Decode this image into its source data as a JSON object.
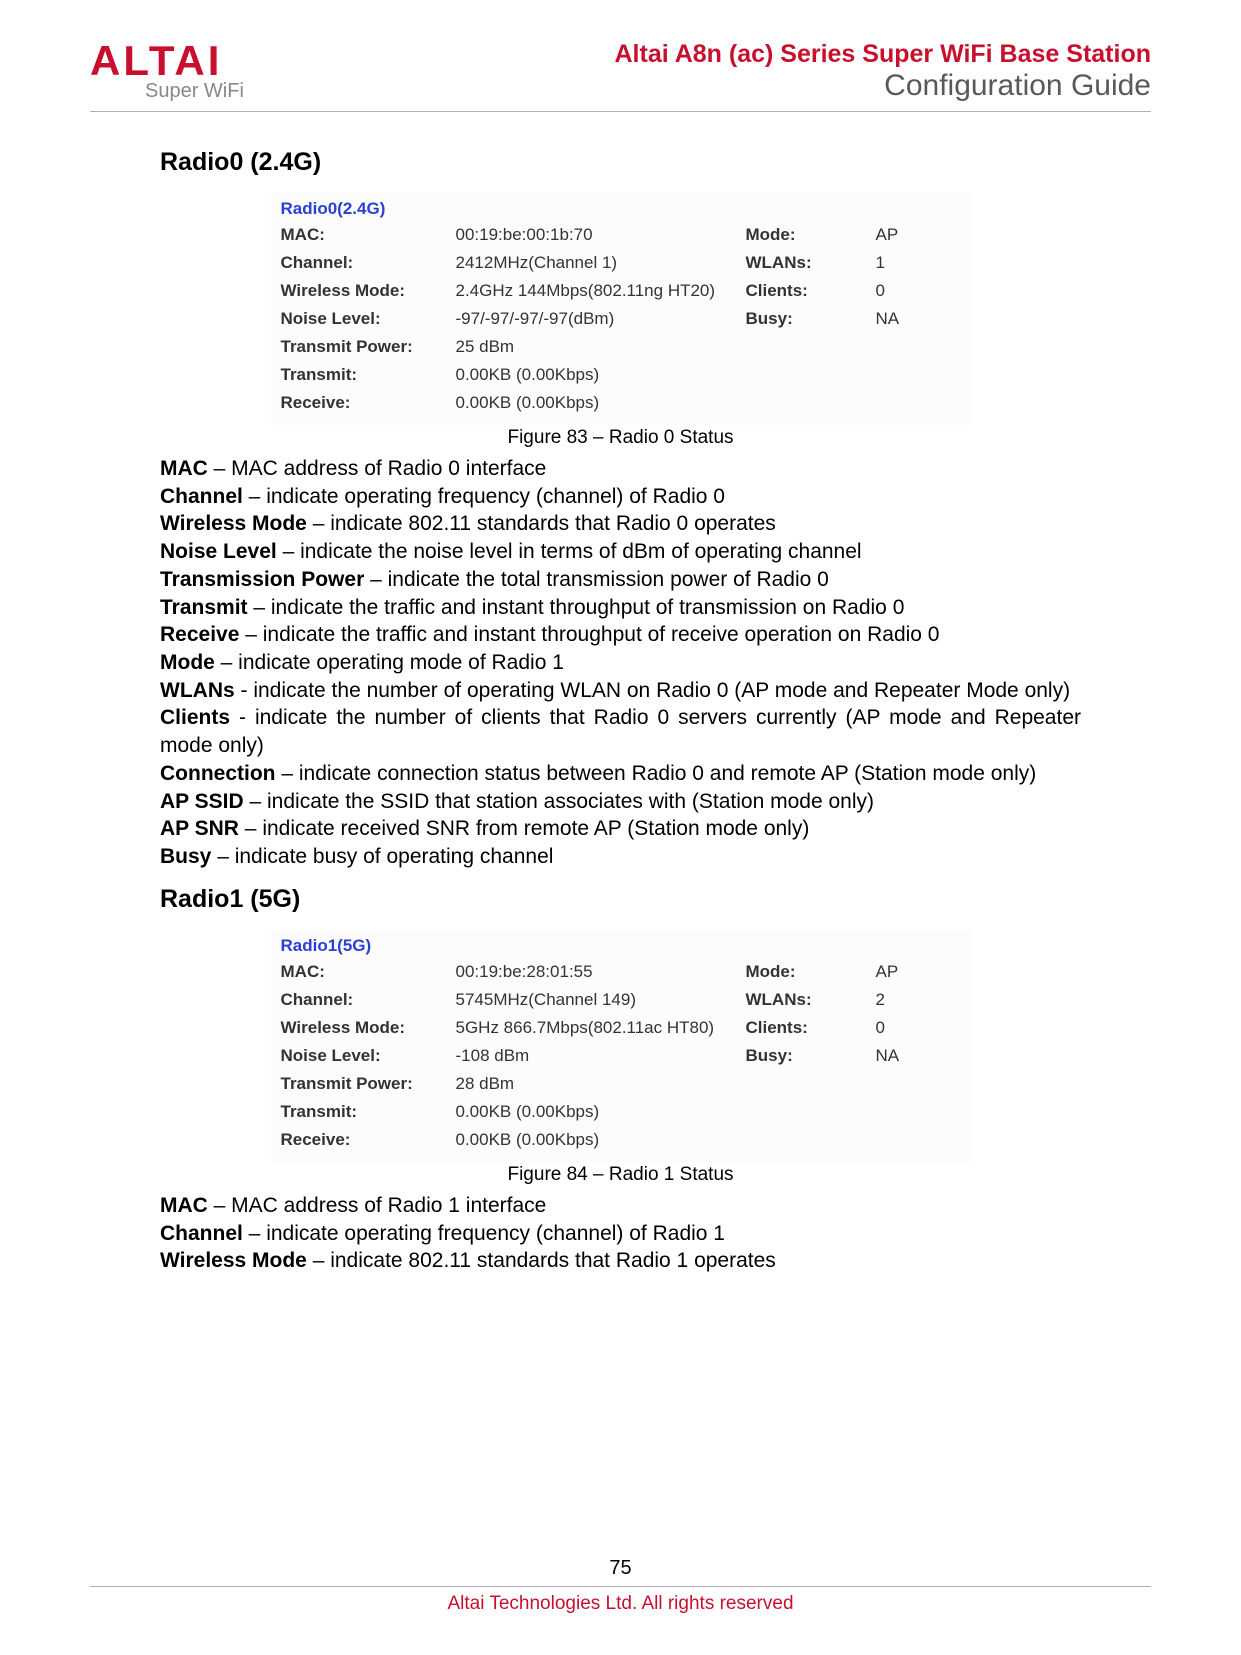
{
  "header": {
    "logo_main": "ALTAI",
    "logo_sub": "Super WiFi",
    "title1": "Altai A8n (ac) Series Super WiFi Base Station",
    "title2": "Configuration Guide"
  },
  "section1": {
    "heading": "Radio0 (2.4G)",
    "table_title": "Radio0(2.4G)",
    "rows": [
      {
        "lbl": "MAC:",
        "val": "00:19:be:00:1b:70",
        "lbl2": "Mode:",
        "val2": "AP"
      },
      {
        "lbl": "Channel:",
        "val": "2412MHz(Channel 1)",
        "lbl2": "WLANs:",
        "val2": "1"
      },
      {
        "lbl": "Wireless Mode:",
        "val": "2.4GHz 144Mbps(802.11ng HT20)",
        "lbl2": "Clients:",
        "val2": "0"
      },
      {
        "lbl": "Noise Level:",
        "val": "-97/-97/-97/-97(dBm)",
        "lbl2": "Busy:",
        "val2": "NA"
      },
      {
        "lbl": "Transmit Power:",
        "val": "25 dBm",
        "lbl2": "",
        "val2": ""
      },
      {
        "lbl": "Transmit:",
        "val": "0.00KB (0.00Kbps)",
        "lbl2": "",
        "val2": ""
      },
      {
        "lbl": "Receive:",
        "val": "0.00KB (0.00Kbps)",
        "lbl2": "",
        "val2": ""
      }
    ],
    "caption": "Figure 83 – Radio 0 Status",
    "defs": [
      {
        "term": "MAC",
        "text": " – MAC address of Radio 0 interface",
        "j": false
      },
      {
        "term": "Channel",
        "text": " – indicate operating frequency (channel) of Radio 0",
        "j": false
      },
      {
        "term": "Wireless Mode",
        "text": " – indicate 802.11 standards that Radio 0 operates",
        "j": false
      },
      {
        "term": "Noise Level",
        "text": " – indicate the noise level in terms of dBm of operating channel",
        "j": false
      },
      {
        "term": "Transmission Power",
        "text": " – indicate the total transmission power of Radio 0",
        "j": false
      },
      {
        "term": "Transmit",
        "text": " – indicate the traffic and instant throughput of transmission on Radio 0",
        "j": false
      },
      {
        "term": "Receive",
        "text": " – indicate the traffic and instant throughput of receive operation on Radio 0",
        "j": true
      },
      {
        "term": "Mode",
        "text": " – indicate operating mode of Radio 1",
        "j": false
      },
      {
        "term": "WLANs",
        "text": " - indicate the number of operating WLAN on Radio 0 (AP mode and Repeater Mode only)",
        "j": false
      },
      {
        "term": "Clients",
        "text": " - indicate the number of clients that Radio 0 servers currently (AP mode and Repeater mode only)",
        "j": true
      },
      {
        "term": "Connection",
        "text": " – indicate connection status between Radio 0 and remote AP (Station mode only)",
        "j": false
      },
      {
        "term": "AP SSID",
        "text": " – indicate the SSID that station associates with (Station mode only)",
        "j": true
      },
      {
        "term": "AP SNR",
        "text": " – indicate received SNR from remote AP (Station mode only)",
        "j": false
      },
      {
        "term": "Busy",
        "text": " – indicate busy of operating channel",
        "j": false
      }
    ]
  },
  "section2": {
    "heading": "Radio1 (5G)",
    "table_title": "Radio1(5G)",
    "rows": [
      {
        "lbl": "MAC:",
        "val": "00:19:be:28:01:55",
        "lbl2": "Mode:",
        "val2": "AP"
      },
      {
        "lbl": "Channel:",
        "val": "5745MHz(Channel 149)",
        "lbl2": "WLANs:",
        "val2": "2"
      },
      {
        "lbl": "Wireless Mode:",
        "val": "5GHz 866.7Mbps(802.11ac HT80)",
        "lbl2": "Clients:",
        "val2": "0"
      },
      {
        "lbl": "Noise Level:",
        "val": "-108 dBm",
        "lbl2": "Busy:",
        "val2": "NA"
      },
      {
        "lbl": "Transmit Power:",
        "val": "28 dBm",
        "lbl2": "",
        "val2": ""
      },
      {
        "lbl": "Transmit:",
        "val": "0.00KB (0.00Kbps)",
        "lbl2": "",
        "val2": ""
      },
      {
        "lbl": "Receive:",
        "val": "0.00KB (0.00Kbps)",
        "lbl2": "",
        "val2": ""
      }
    ],
    "caption": "Figure 84 – Radio 1 Status",
    "defs": [
      {
        "term": "MAC",
        "text": " – MAC address of Radio 1 interface",
        "j": false
      },
      {
        "term": "Channel",
        "text": " – indicate operating frequency (channel) of Radio 1",
        "j": false
      },
      {
        "term": "Wireless Mode",
        "text": " – indicate 802.11 standards that Radio 1 operates",
        "j": false
      }
    ]
  },
  "footer": {
    "page": "75",
    "text": "Altai Technologies Ltd. All rights reserved"
  }
}
